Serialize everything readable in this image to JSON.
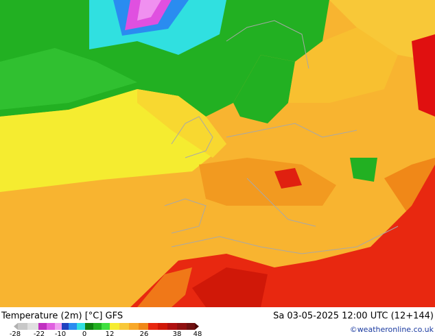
{
  "title": "Temperature (2m) [°C] GFS",
  "datetime": "Sa 03-05-2025 12:00 UTC (12+144)",
  "credit": "©weatheronline.co.uk",
  "legend": {
    "ticks": [
      -28,
      -22,
      -10,
      0,
      12,
      26,
      38,
      48
    ]
  }
}
